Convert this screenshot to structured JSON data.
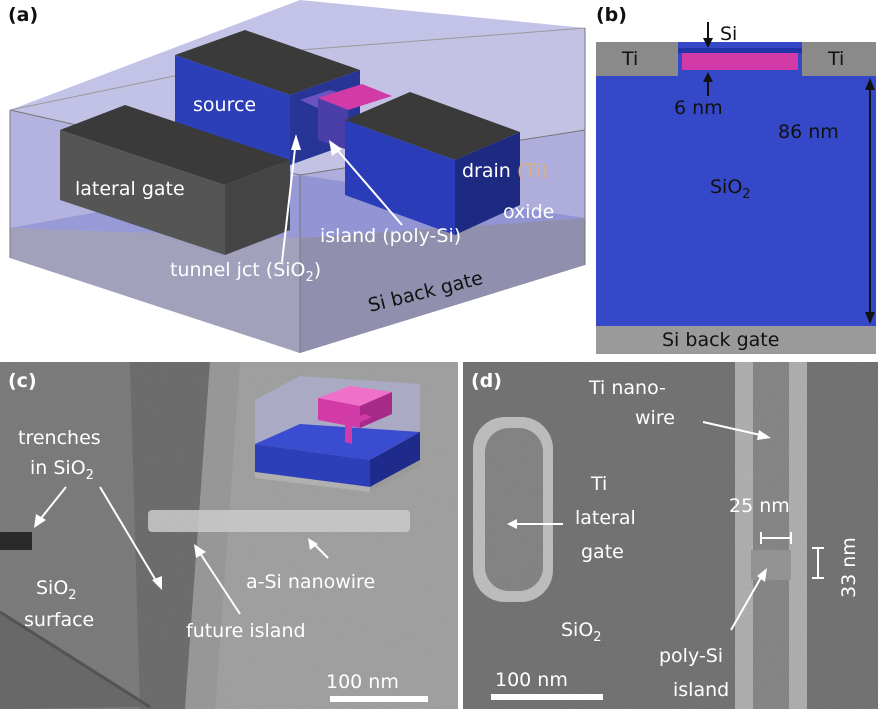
{
  "panels": {
    "a": {
      "label": "(a)",
      "source": "source",
      "lateral_gate": "lateral gate",
      "drain": "drain",
      "drain_material": "(Ti)",
      "oxide": "oxide",
      "island": "island (poly-Si)",
      "tunnel_prefix": "tunnel jct (SiO",
      "tunnel_sub": "2",
      "tunnel_suffix": ")",
      "back_gate": "Si back gate"
    },
    "b": {
      "label": "(b)",
      "si": "Si",
      "ti_left": "Ti",
      "ti_right": "Ti",
      "thickness_si": "6 nm",
      "thickness_oxide": "86 nm",
      "oxide_main": "SiO",
      "oxide_sub": "2",
      "back_gate": "Si back gate"
    },
    "c": {
      "label": "(c)",
      "trenches_line1": "trenches",
      "trenches_line2_main": "in SiO",
      "trenches_line2_sub": "2",
      "surface_line1_main": "SiO",
      "surface_line1_sub": "2",
      "surface_line2": "surface",
      "future_island": "future island",
      "nanowire": "a-Si nanowire",
      "scale": "100 nm"
    },
    "d": {
      "label": "(d)",
      "ti_wire_line1": "Ti nano-",
      "ti_wire_line2": "wire",
      "gate_line1": "Ti",
      "gate_line2": "lateral",
      "gate_line3": "gate",
      "width": "25 nm",
      "height": "33 nm",
      "oxide_main": "SiO",
      "oxide_sub": "2",
      "island_line1": "poly-Si",
      "island_line2": "island",
      "scale": "100 nm"
    }
  },
  "colors": {
    "oxide_blue": "#3548c8",
    "oxide_light": "#a9a8d8",
    "gate_gray": "#4a4a4a",
    "island_magenta": "#d23aa8",
    "substrate_gray": "#9a9a9a",
    "sem_gray": "#8c8c8c"
  }
}
